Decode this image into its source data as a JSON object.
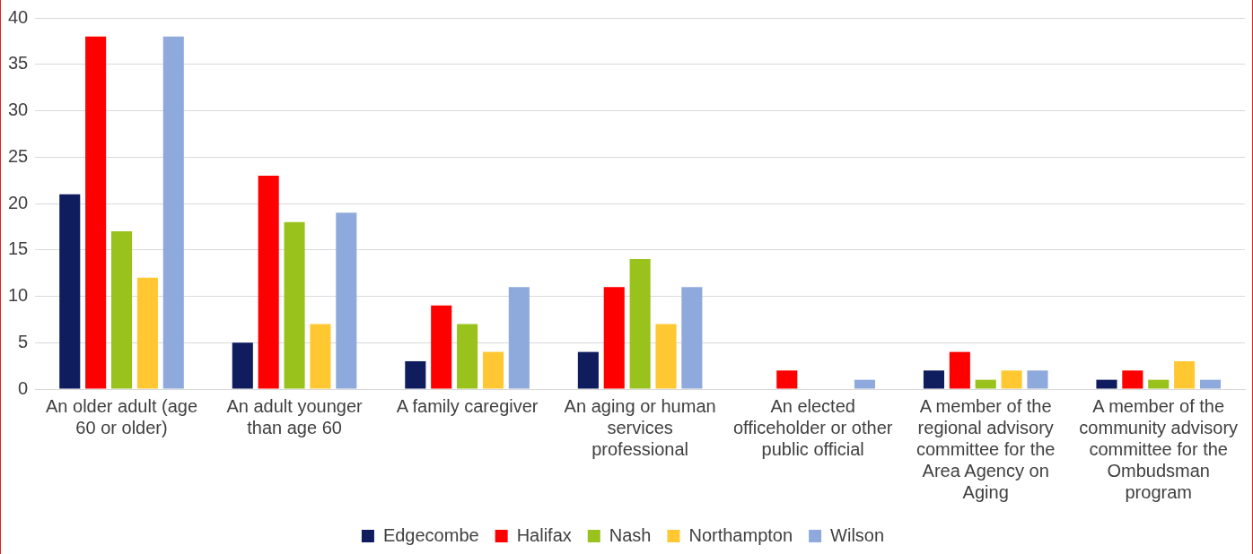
{
  "chart_data": {
    "type": "bar",
    "categories": [
      "An older adult (age 60 or older)",
      "An adult younger than age 60",
      "A family caregiver",
      "An aging or human services professional",
      "An elected officeholder or other public official",
      "A member of the regional advisory committee for the Area Agency on Aging",
      "A member of the community advisory committee for the Ombudsman program"
    ],
    "series": [
      {
        "name": "Edgecombe",
        "color": "#0f1c5e",
        "values": [
          21,
          5,
          3,
          4,
          0,
          2,
          1
        ]
      },
      {
        "name": "Halifax",
        "color": "#ff0000",
        "values": [
          38,
          23,
          9,
          11,
          2,
          4,
          2
        ]
      },
      {
        "name": "Nash",
        "color": "#99c21c",
        "values": [
          17,
          18,
          7,
          14,
          0,
          1,
          1
        ]
      },
      {
        "name": "Northampton",
        "color": "#ffc832",
        "values": [
          12,
          7,
          4,
          7,
          0,
          2,
          3
        ]
      },
      {
        "name": "Wilson",
        "color": "#8eaadc",
        "values": [
          38,
          19,
          11,
          11,
          1,
          2,
          1
        ]
      }
    ],
    "ylim": [
      0,
      40
    ],
    "yticks": [
      0,
      5,
      10,
      15,
      20,
      25,
      30,
      35,
      40
    ],
    "grid": "y",
    "legend": "bottom"
  }
}
